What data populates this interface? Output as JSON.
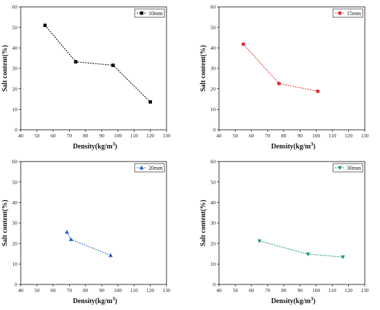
{
  "chart_data": [
    {
      "type": "line",
      "xlabel": "Density(kg/m",
      "xlabel_sup": "3",
      "xlabel_end": ")",
      "ylabel": "Salt content(%)",
      "xlim": [
        40,
        130
      ],
      "ylim": [
        0,
        60
      ],
      "xticks": [
        40,
        50,
        60,
        70,
        80,
        90,
        100,
        110,
        120,
        130
      ],
      "yticks": [
        0,
        10,
        20,
        30,
        40,
        50,
        60
      ],
      "legend_position": "top-right",
      "grid": false,
      "series": [
        {
          "name": "10mm",
          "color": "#000000",
          "marker": "square",
          "x": [
            55,
            74,
            97,
            120
          ],
          "y": [
            51,
            33.2,
            31.5,
            13.6
          ]
        }
      ]
    },
    {
      "type": "line",
      "xlabel": "Density(kg/m",
      "xlabel_sup": "3",
      "xlabel_end": ")",
      "ylabel": "Salt content(%)",
      "xlim": [
        40,
        130
      ],
      "ylim": [
        0,
        60
      ],
      "xticks": [
        40,
        50,
        60,
        70,
        80,
        90,
        100,
        110,
        120,
        130
      ],
      "yticks": [
        0,
        10,
        20,
        30,
        40,
        50,
        60
      ],
      "legend_position": "top-right",
      "grid": false,
      "series": [
        {
          "name": "15mm",
          "color": "#e0302f",
          "marker": "circle",
          "x": [
            55,
            77,
            101
          ],
          "y": [
            41.8,
            22.6,
            18.8
          ]
        }
      ]
    },
    {
      "type": "line",
      "xlabel": "Density(kg/m",
      "xlabel_sup": "3",
      "xlabel_end": ")",
      "ylabel": "Salt content(%)",
      "xlim": [
        40,
        130
      ],
      "ylim": [
        0,
        60
      ],
      "xticks": [
        40,
        50,
        60,
        70,
        80,
        90,
        100,
        110,
        120,
        130
      ],
      "yticks": [
        0,
        10,
        20,
        30,
        40,
        50,
        60
      ],
      "legend_position": "top-right",
      "grid": false,
      "series": [
        {
          "name": "20mm",
          "color": "#1f5fbf",
          "marker": "triangle-up",
          "x": [
            68.5,
            71,
            95.5
          ],
          "y": [
            25.6,
            22,
            14.2
          ]
        }
      ]
    },
    {
      "type": "line",
      "xlabel": "Density(kg/m",
      "xlabel_sup": "3",
      "xlabel_end": ")",
      "ylabel": "Salt content(%)",
      "xlim": [
        40,
        130
      ],
      "ylim": [
        0,
        60
      ],
      "xticks": [
        40,
        50,
        60,
        70,
        80,
        90,
        100,
        110,
        120,
        130
      ],
      "yticks": [
        0,
        10,
        20,
        30,
        40,
        50,
        60
      ],
      "legend_position": "top-right",
      "grid": false,
      "series": [
        {
          "name": "30mm",
          "color": "#1b9a6e",
          "marker": "triangle-down",
          "x": [
            65,
            95,
            116.5
          ],
          "y": [
            21.2,
            14.8,
            13.4
          ]
        }
      ]
    }
  ]
}
